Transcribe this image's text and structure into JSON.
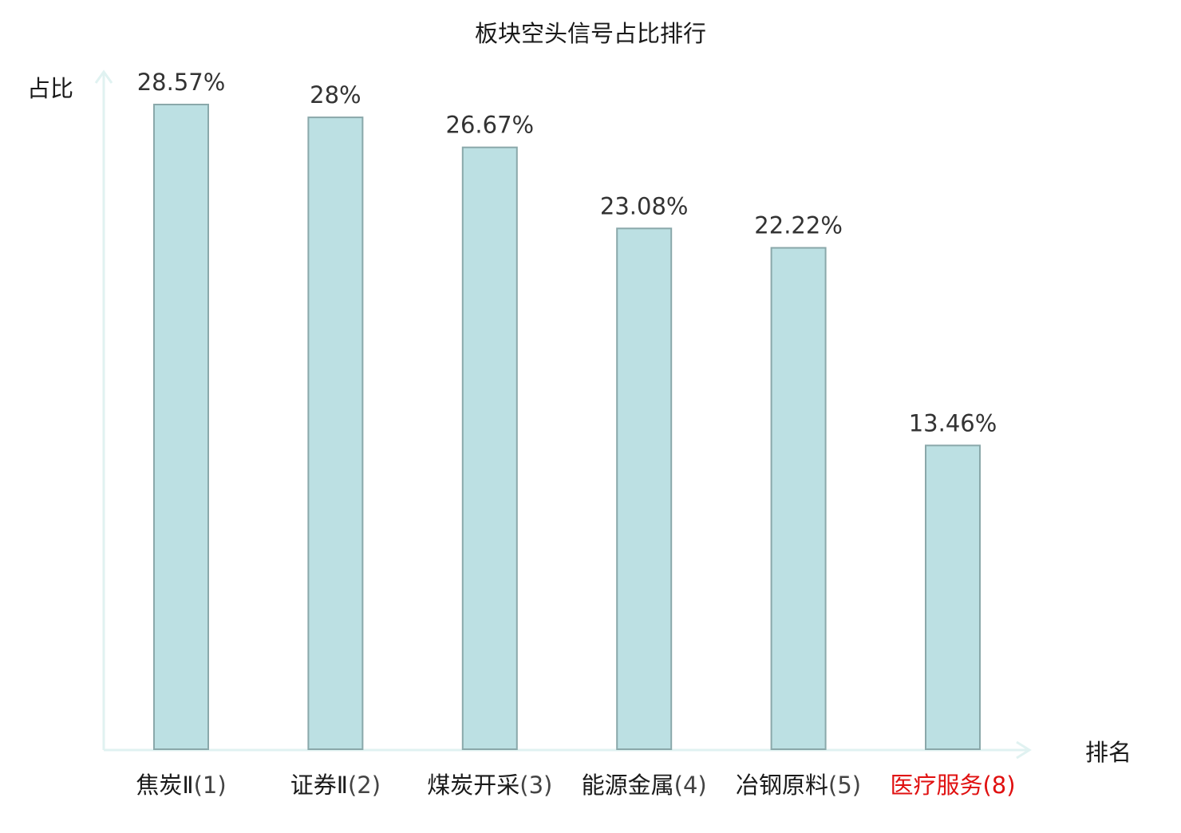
{
  "chart_data": {
    "type": "bar",
    "title": "板块空头信号占比排行",
    "ylabel": "占比",
    "xlabel": "排名",
    "categories": [
      {
        "name": "焦炭Ⅱ",
        "rank": "(1)",
        "highlight": false
      },
      {
        "name": "证券Ⅱ",
        "rank": "(2)",
        "highlight": false
      },
      {
        "name": "煤炭开采",
        "rank": "(3)",
        "highlight": false
      },
      {
        "name": "能源金属",
        "rank": "(4)",
        "highlight": false
      },
      {
        "name": "冶钢原料",
        "rank": "(5)",
        "highlight": false
      },
      {
        "name": "医疗服务",
        "rank": "(8)",
        "highlight": true
      }
    ],
    "values": [
      28.57,
      28,
      26.67,
      23.08,
      22.22,
      13.46
    ],
    "value_labels": [
      "28.57%",
      "28%",
      "26.67%",
      "23.08%",
      "22.22%",
      "13.46%"
    ],
    "ylim": [
      0,
      30
    ],
    "grid": false,
    "colors": {
      "bar_fill": "#bce0e3",
      "bar_stroke": "#8aa8aa",
      "axis": "#e0f2f1",
      "text": "#1a1a1a",
      "value_text": "#333333",
      "highlight": "#e01010",
      "category_rank": "#444444"
    }
  }
}
